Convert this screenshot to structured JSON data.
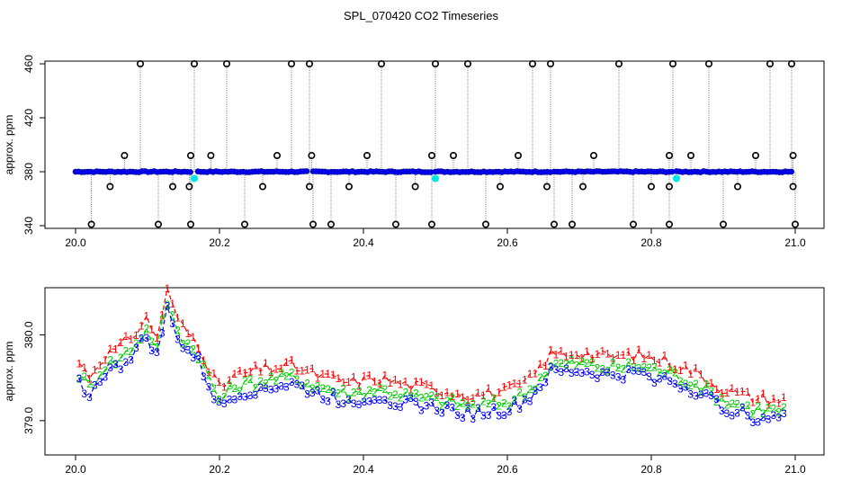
{
  "title": "SPL_070420  CO2 Timeseries",
  "chart_data": [
    {
      "type": "scatter",
      "ylabel": "approx. ppm",
      "xlabel": "",
      "xlim": [
        20.0,
        21.0
      ],
      "ylim": [
        338,
        462
      ],
      "xticks": [
        "20.0",
        "20.2",
        "20.4",
        "20.6",
        "20.8",
        "21.0"
      ],
      "yticks": [
        "340",
        "380",
        "420",
        "460"
      ],
      "baseline": 380,
      "segment_starts": [
        20.0,
        20.17,
        20.33,
        20.5,
        20.665,
        20.835
      ],
      "segment_ends": [
        20.16,
        20.325,
        20.495,
        20.66,
        20.83,
        20.995
      ],
      "high_outliers": [
        20.09,
        20.165,
        20.21,
        20.3,
        20.325,
        20.425,
        20.5,
        20.545,
        20.635,
        20.66,
        20.755,
        20.83,
        20.88,
        20.965,
        20.995
      ],
      "mid_outliers": [
        20.068,
        20.16,
        20.188,
        20.28,
        20.328,
        20.405,
        20.495,
        20.525,
        20.615,
        20.72,
        20.825,
        20.855,
        20.945,
        20.997
      ],
      "low_outliers": [
        20.022,
        20.115,
        20.16,
        20.235,
        20.33,
        20.355,
        20.445,
        20.495,
        20.57,
        20.665,
        20.69,
        20.775,
        20.825,
        20.9,
        21.0
      ],
      "sub_outliers": [
        20.048,
        20.135,
        20.158,
        20.26,
        20.325,
        20.38,
        20.472,
        20.59,
        20.655,
        20.705,
        20.8,
        20.825,
        20.92,
        20.997
      ],
      "cyan_points": [
        20.165,
        20.5,
        20.835
      ],
      "colors": {
        "points": "#0000ff",
        "outliers": "#000000",
        "cyan": "#00e5e5",
        "drop_lines": "#8c8c8c"
      }
    },
    {
      "type": "line",
      "ylabel": "approx. ppm",
      "xlabel": "",
      "xlim": [
        20.0,
        21.0
      ],
      "ylim": [
        378.6,
        380.55
      ],
      "xticks": [
        "20.0",
        "20.2",
        "20.4",
        "20.6",
        "20.8",
        "21.0"
      ],
      "yticks": [
        "379.0",
        "380.0"
      ],
      "anchor_x": [
        20.0,
        20.02,
        20.04,
        20.06,
        20.08,
        20.1,
        20.115,
        20.125,
        20.135,
        20.15,
        20.17,
        20.18,
        20.2,
        20.22,
        20.26,
        20.3,
        20.34,
        20.38,
        20.42,
        20.46,
        20.5,
        20.55,
        20.6,
        20.63,
        20.66,
        20.7,
        20.74,
        20.78,
        20.82,
        20.86,
        20.9,
        20.94,
        20.98
      ],
      "anchor_y": [
        379.5,
        379.3,
        379.55,
        379.62,
        379.78,
        379.98,
        379.7,
        380.35,
        380.1,
        379.85,
        379.7,
        379.5,
        379.15,
        379.3,
        379.38,
        379.42,
        379.3,
        379.22,
        379.28,
        379.2,
        379.15,
        379.08,
        379.12,
        379.25,
        379.55,
        379.58,
        379.52,
        379.55,
        379.48,
        379.35,
        379.15,
        379.05,
        379.02
      ],
      "marker_glyphs": [
        "1",
        "2",
        "3"
      ],
      "series": [
        {
          "name": "1",
          "color": "#ff0000",
          "offset": 0.22
        },
        {
          "name": "2",
          "color": "#00cd00",
          "offset": 0.09
        },
        {
          "name": "3",
          "color": "#0000ff",
          "offset": 0.0
        }
      ]
    }
  ]
}
